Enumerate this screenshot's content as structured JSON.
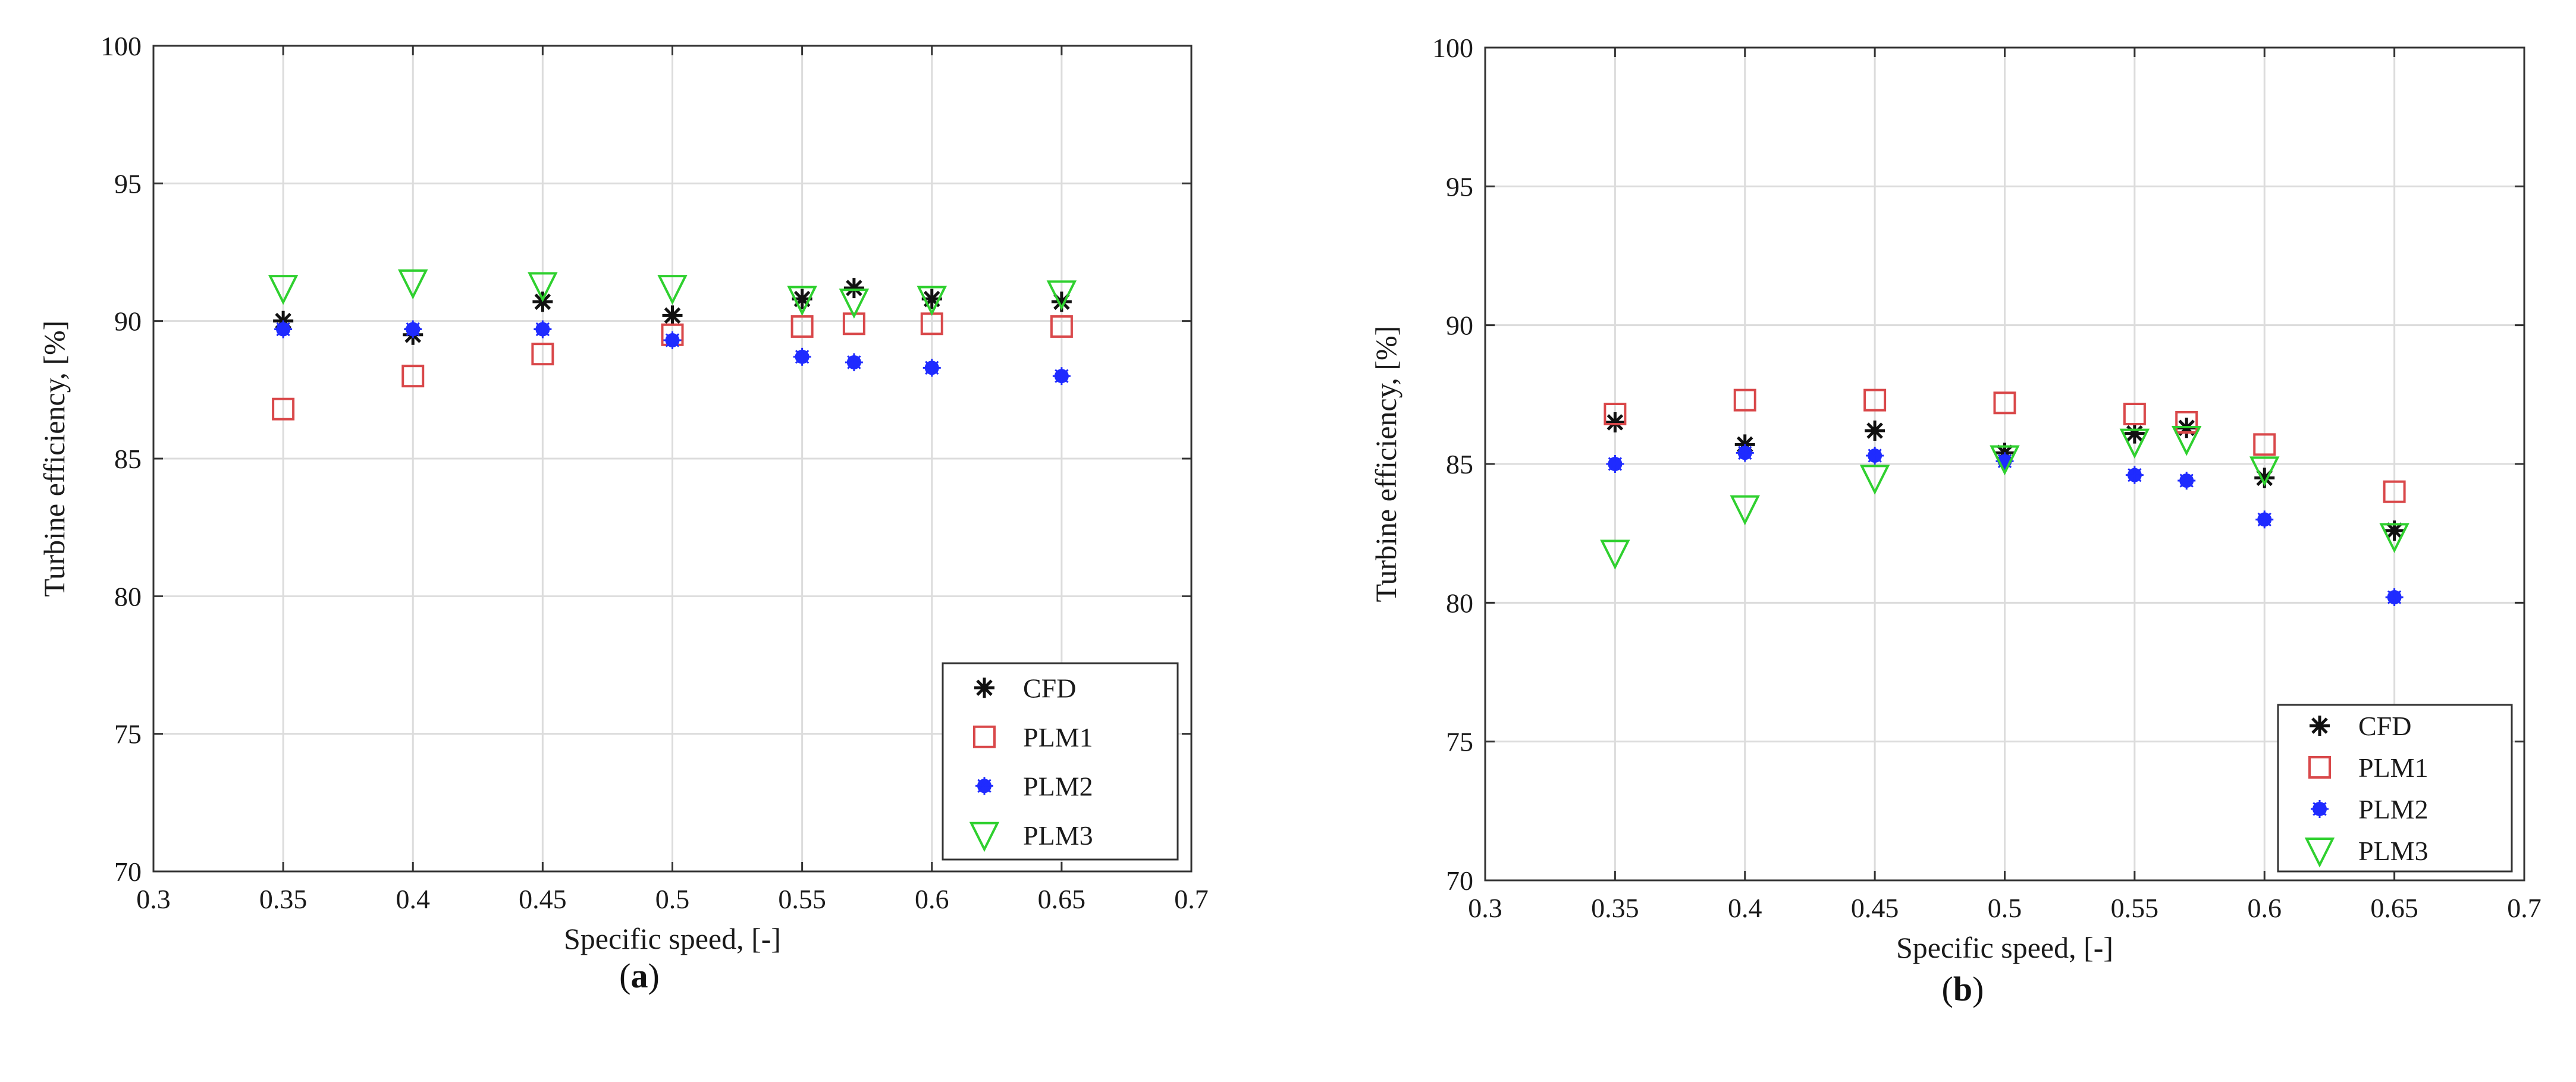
{
  "colors": {
    "CFD": "#111111",
    "PLM1": "#d9484a",
    "PLM2": "#1f2bff",
    "PLM3": "#2fd02f",
    "grid": "#dcdcdc",
    "axis": "#333333"
  },
  "chart_data": [
    {
      "type": "scatter",
      "caption": "a",
      "xlabel": "Specific speed, [-]",
      "ylabel": "Turbine efficiency, [%]",
      "xlim": [
        0.3,
        0.7
      ],
      "ylim": [
        70,
        100
      ],
      "xticks": [
        0.3,
        0.35,
        0.4,
        0.45,
        0.5,
        0.55,
        0.6,
        0.65,
        0.7
      ],
      "yticks": [
        70,
        75,
        80,
        85,
        90,
        95,
        100
      ],
      "xtick_labels": [
        "0.3",
        "0.35",
        "0.4",
        "0.45",
        "0.5",
        "0.55",
        "0.6",
        "0.65",
        "0.7"
      ],
      "ytick_labels": [
        "70",
        "75",
        "80",
        "85",
        "90",
        "95",
        "100"
      ],
      "grid": true,
      "legend_position": "bottom-right",
      "series": [
        {
          "name": "CFD",
          "marker": "asterisk",
          "x": [
            0.35,
            0.4,
            0.45,
            0.5,
            0.55,
            0.57,
            0.6,
            0.65
          ],
          "y": [
            90.0,
            89.5,
            90.7,
            90.2,
            90.8,
            91.2,
            90.8,
            90.7
          ]
        },
        {
          "name": "PLM1",
          "marker": "square",
          "x": [
            0.35,
            0.4,
            0.45,
            0.5,
            0.55,
            0.57,
            0.6,
            0.65
          ],
          "y": [
            86.8,
            88.0,
            88.8,
            89.5,
            89.8,
            89.9,
            89.9,
            89.8
          ]
        },
        {
          "name": "PLM2",
          "marker": "dot",
          "x": [
            0.35,
            0.4,
            0.45,
            0.5,
            0.55,
            0.57,
            0.6,
            0.65
          ],
          "y": [
            89.7,
            89.7,
            89.7,
            89.3,
            88.7,
            88.5,
            88.3,
            88.0
          ]
        },
        {
          "name": "PLM3",
          "marker": "triangle-down",
          "x": [
            0.35,
            0.4,
            0.45,
            0.5,
            0.55,
            0.57,
            0.6,
            0.65
          ],
          "y": [
            91.2,
            91.4,
            91.3,
            91.2,
            90.8,
            90.7,
            90.8,
            91.0
          ]
        }
      ]
    },
    {
      "type": "scatter",
      "caption": "b",
      "xlabel": "Specific speed, [-]",
      "ylabel": "Turbine efficiency, [%]",
      "xlim": [
        0.3,
        0.7
      ],
      "ylim": [
        70,
        100
      ],
      "xticks": [
        0.3,
        0.35,
        0.4,
        0.45,
        0.5,
        0.55,
        0.6,
        0.65,
        0.7
      ],
      "yticks": [
        70,
        75,
        80,
        85,
        90,
        95,
        100
      ],
      "xtick_labels": [
        "0.3",
        "0.35",
        "0.4",
        "0.45",
        "0.5",
        "0.55",
        "0.6",
        "0.65",
        "0.7"
      ],
      "ytick_labels": [
        "70",
        "75",
        "80",
        "85",
        "90",
        "95",
        "100"
      ],
      "grid": true,
      "legend_position": "bottom-right",
      "series": [
        {
          "name": "CFD",
          "marker": "asterisk",
          "x": [
            0.35,
            0.4,
            0.45,
            0.5,
            0.55,
            0.57,
            0.6,
            0.65
          ],
          "y": [
            86.5,
            85.7,
            86.2,
            85.4,
            86.1,
            86.3,
            84.5,
            82.6
          ]
        },
        {
          "name": "PLM1",
          "marker": "square",
          "x": [
            0.35,
            0.4,
            0.45,
            0.5,
            0.55,
            0.57,
            0.6,
            0.65
          ],
          "y": [
            86.8,
            87.3,
            87.3,
            87.2,
            86.8,
            86.5,
            85.7,
            84.0
          ]
        },
        {
          "name": "PLM2",
          "marker": "dot",
          "x": [
            0.35,
            0.4,
            0.45,
            0.5,
            0.55,
            0.57,
            0.6,
            0.65
          ],
          "y": [
            85.0,
            85.4,
            85.3,
            85.1,
            84.6,
            84.4,
            83.0,
            80.2
          ]
        },
        {
          "name": "PLM3",
          "marker": "triangle-down",
          "x": [
            0.35,
            0.4,
            0.45,
            0.5,
            0.55,
            0.57,
            0.6,
            0.65
          ],
          "y": [
            81.8,
            83.4,
            84.5,
            85.2,
            85.8,
            85.9,
            84.8,
            82.4
          ]
        }
      ]
    }
  ]
}
